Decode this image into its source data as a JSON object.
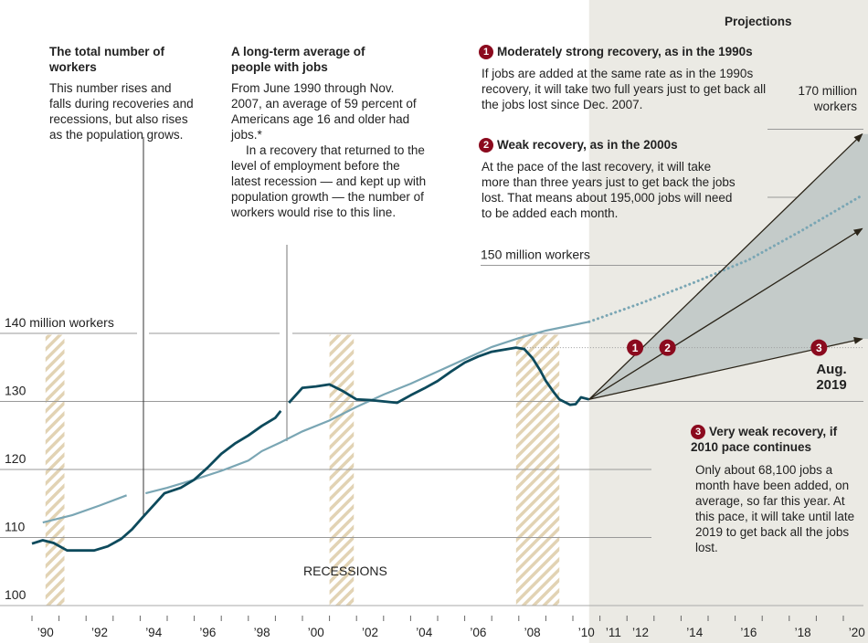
{
  "chart_data": {
    "type": "line",
    "ylim": [
      100,
      172
    ],
    "xlim": [
      1990,
      2021
    ],
    "y_ticks": [
      {
        "value": 100,
        "label": "100"
      },
      {
        "value": 110,
        "label": "110"
      },
      {
        "value": 120,
        "label": "120"
      },
      {
        "value": 130,
        "label": "130"
      },
      {
        "value": 140,
        "label": "140 million workers"
      },
      {
        "value": 150,
        "label": "150 million workers"
      },
      {
        "value": 160,
        "label": ""
      },
      {
        "value": 170,
        "label": "170 million workers"
      }
    ],
    "x_tick_labels": [
      {
        "year": 1990,
        "label": "’90"
      },
      {
        "year": 1992,
        "label": "’92"
      },
      {
        "year": 1994,
        "label": "’94"
      },
      {
        "year": 1996,
        "label": "’96"
      },
      {
        "year": 1998,
        "label": "’98"
      },
      {
        "year": 2000,
        "label": "’00"
      },
      {
        "year": 2002,
        "label": "’02"
      },
      {
        "year": 2004,
        "label": "’04"
      },
      {
        "year": 2006,
        "label": "’06"
      },
      {
        "year": 2008,
        "label": "’08"
      },
      {
        "year": 2010,
        "label": "’10"
      },
      {
        "year": 2011,
        "label": "’11"
      },
      {
        "year": 2012,
        "label": "’12"
      },
      {
        "year": 2014,
        "label": "’14"
      },
      {
        "year": 2016,
        "label": "’16"
      },
      {
        "year": 2018,
        "label": "’18"
      },
      {
        "year": 2020,
        "label": "’20"
      }
    ],
    "recessions_label": "RECESSIONS",
    "recessions": [
      [
        1990.5,
        1991.2
      ],
      [
        2001.0,
        2001.9
      ],
      [
        2007.9,
        2009.5
      ]
    ],
    "series": [
      {
        "name": "The total number of workers",
        "color": "#0d4a5c",
        "points": [
          [
            1990.0,
            109.1
          ],
          [
            1990.4,
            109.6
          ],
          [
            1990.8,
            109.2
          ],
          [
            1991.3,
            108.1
          ],
          [
            1992.3,
            108.1
          ],
          [
            1992.8,
            108.7
          ],
          [
            1993.3,
            109.8
          ],
          [
            1993.7,
            111.2
          ],
          [
            1994.1,
            113.0
          ],
          [
            1994.6,
            115.2
          ],
          [
            1994.9,
            116.5
          ],
          [
            1995.5,
            117.3
          ],
          [
            1996.0,
            118.5
          ],
          [
            1996.5,
            120.3
          ],
          [
            1997.0,
            122.3
          ],
          [
            1997.5,
            123.8
          ],
          [
            1998.0,
            125.0
          ],
          [
            1998.5,
            126.4
          ],
          [
            1999.0,
            127.6
          ],
          [
            1999.2,
            128.6
          ],
          [
            null,
            null
          ],
          [
            1999.5,
            129.8
          ],
          [
            2000.0,
            132.0
          ],
          [
            2000.5,
            132.2
          ],
          [
            2001.0,
            132.5
          ],
          [
            2001.5,
            131.5
          ],
          [
            2002.0,
            130.3
          ],
          [
            2002.5,
            130.2
          ],
          [
            2003.0,
            130.0
          ],
          [
            2003.5,
            129.8
          ],
          [
            2004.0,
            130.9
          ],
          [
            2004.5,
            131.9
          ],
          [
            2005.0,
            133.0
          ],
          [
            2005.5,
            134.4
          ],
          [
            2006.0,
            135.7
          ],
          [
            2006.5,
            136.6
          ],
          [
            2007.0,
            137.3
          ],
          [
            2007.9,
            137.9
          ],
          [
            2008.2,
            137.7
          ],
          [
            2008.5,
            136.4
          ],
          [
            2008.8,
            134.5
          ],
          [
            2009.0,
            133.0
          ],
          [
            2009.3,
            131.3
          ],
          [
            2009.5,
            130.3
          ],
          [
            2009.9,
            129.5
          ],
          [
            2010.1,
            129.6
          ],
          [
            2010.3,
            130.6
          ],
          [
            2010.6,
            130.3
          ]
        ]
      },
      {
        "name": "A long-term average of people with jobs",
        "color": "#7aa6b4",
        "points": [
          [
            1990.4,
            112.2
          ],
          [
            1991.5,
            113.3
          ],
          [
            1992.5,
            114.7
          ],
          [
            1993.5,
            116.2
          ],
          [
            null,
            null
          ],
          [
            1994.2,
            116.5
          ],
          [
            1995.0,
            117.3
          ],
          [
            1996.0,
            118.5
          ],
          [
            1997.0,
            119.8
          ],
          [
            1998.0,
            121.3
          ],
          [
            1998.5,
            122.7
          ],
          [
            1999.2,
            124.0
          ],
          [
            2000.0,
            125.6
          ],
          [
            2001.0,
            127.2
          ],
          [
            2002.0,
            129.2
          ],
          [
            2003.0,
            131.0
          ],
          [
            2004.0,
            132.6
          ],
          [
            2005.0,
            134.4
          ],
          [
            2006.0,
            136.2
          ],
          [
            2007.0,
            138.0
          ],
          [
            2008.0,
            139.3
          ],
          [
            2009.0,
            140.4
          ],
          [
            2010.6,
            141.7
          ]
        ],
        "projection": [
          [
            2010.6,
            141.7
          ],
          [
            2012.5,
            144.4
          ],
          [
            2014.5,
            147.5
          ],
          [
            2016.5,
            150.8
          ],
          [
            2018.5,
            155.2
          ],
          [
            2020.7,
            160.3
          ]
        ]
      }
    ],
    "pre_recession_level": 137.9,
    "projections": [
      {
        "id": "1",
        "start": [
          2010.6,
          130.3
        ],
        "end": [
          2020.7,
          169.3
        ],
        "badge_at": [
          2012.3,
          137.9
        ]
      },
      {
        "id": "2",
        "start": [
          2010.6,
          130.3
        ],
        "end": [
          2020.7,
          155.4
        ],
        "badge_at": [
          2013.5,
          137.9
        ]
      },
      {
        "id": "3",
        "start": [
          2010.6,
          130.3
        ],
        "end": [
          2020.7,
          139.2
        ],
        "badge_at": [
          2019.1,
          137.9
        ]
      }
    ],
    "colors": {
      "projection_fill": "#c4cbc9",
      "projection_bg": "#ebeae4",
      "recession_hatch": "#e2d3b4",
      "badge": "#8b0a1e"
    }
  },
  "annotations": {
    "projections_title": "Projections",
    "workers": {
      "title": "The total number of workers",
      "body": "This number rises and falls during recoveries and recessions, but also rises as the population grows."
    },
    "average": {
      "title": "A long-term average of people with jobs",
      "body1": "From June 1990 through Nov. 2007, an average of 59 percent of Americans age 16 and older had jobs.*",
      "body2": "In a recovery that returned to the level of employment before the latest recession — and kept up with population growth — the number of workers would rise to this line."
    },
    "p1": {
      "num": "1",
      "title": "Moderately strong recovery, as in the 1990s",
      "body": "If jobs are added at the same rate as in the 1990s recovery, it will take two full years just to get back all the jobs lost since Dec. 2007."
    },
    "p2": {
      "num": "2",
      "title": "Weak recovery, as in the 2000s",
      "body": "At the pace of the last recovery, it will take more than three years just to get back the jobs lost. That means about 195,000 jobs will need to be added each month."
    },
    "p3": {
      "num": "3",
      "title": "Very weak recovery, if 2010 pace continues",
      "body": "Only about 68,100 jobs a month have been added, on average, so far this year. At this pace, it will take until late 2019 to get back all the jobs lost."
    },
    "aug_label": "Aug. 2019",
    "label_170": "170 million workers"
  }
}
